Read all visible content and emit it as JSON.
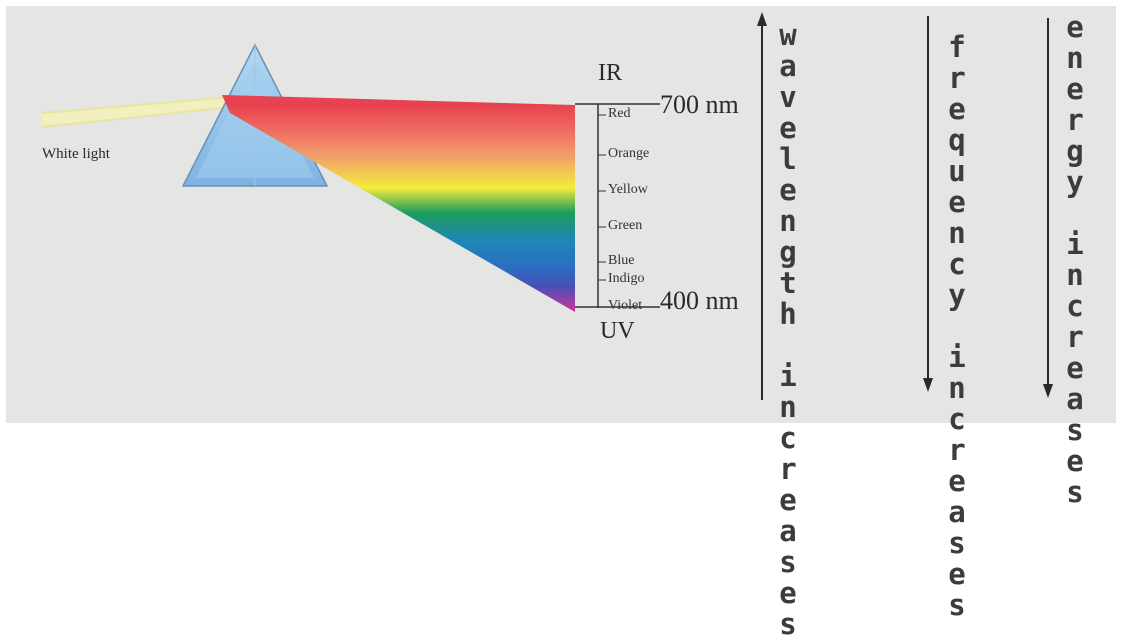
{
  "white_light_label": "White light",
  "ir_label": "IR",
  "uv_label": "UV",
  "wavelength_700": "700 nm",
  "wavelength_400": "400 nm",
  "spectrum_colors": [
    {
      "name": "Red",
      "hex": "#e8414f"
    },
    {
      "name": "Orange",
      "hex": "#f2a06a"
    },
    {
      "name": "Yellow",
      "hex": "#f2ec3c"
    },
    {
      "name": "Green",
      "hex": "#1d9c5c"
    },
    {
      "name": "Blue",
      "hex": "#2a6fc0"
    },
    {
      "name": "Indigo",
      "hex": "#4a4fb5"
    },
    {
      "name": "Violet",
      "hex": "#d0369a"
    }
  ],
  "arrows": {
    "wavelength": {
      "text": "wavelength increases",
      "direction": "up"
    },
    "frequency": {
      "text": "frequency increases",
      "direction": "down"
    },
    "energy": {
      "text": "energy increases",
      "direction": "down"
    }
  },
  "colors": {
    "background": "#e5e5e3",
    "prism": "#8fc0e8",
    "light_beam": "#f2f0bc"
  }
}
